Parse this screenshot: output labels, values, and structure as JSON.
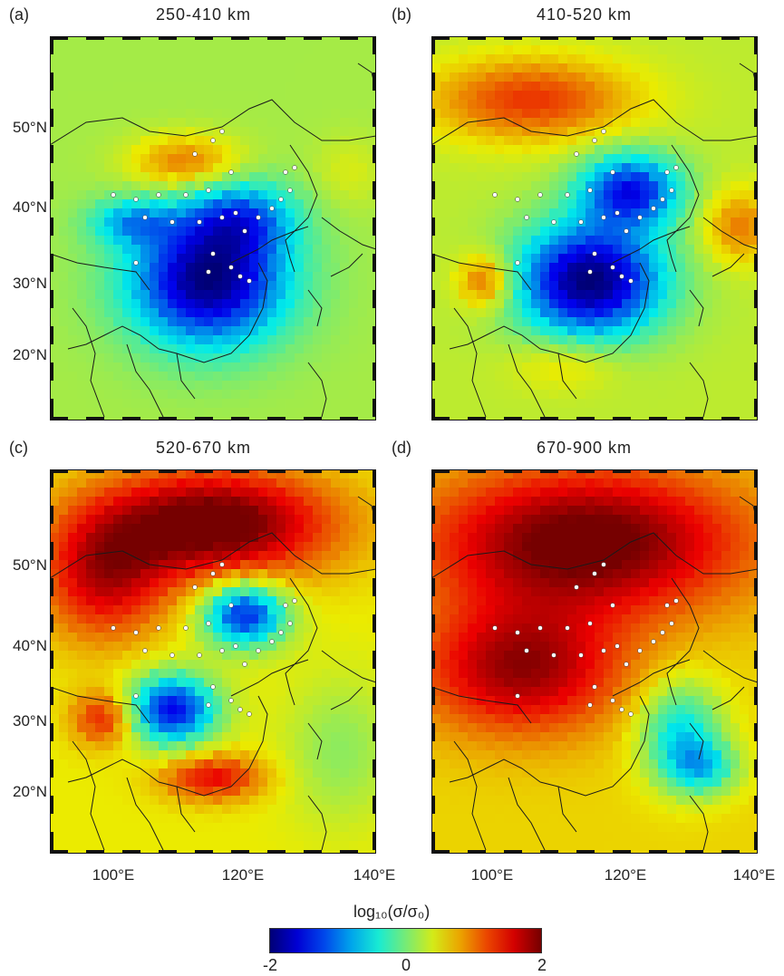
{
  "panels": [
    {
      "label": "(a)",
      "title": "250-410 km"
    },
    {
      "label": "(b)",
      "title": "410-520 km"
    },
    {
      "label": "(c)",
      "title": "520-670 km"
    },
    {
      "label": "(d)",
      "title": "670-900 km"
    }
  ],
  "lat_labels": [
    "50°N",
    "40°N",
    "30°N",
    "20°N"
  ],
  "lon_labels": [
    "100°E",
    "120°E",
    "140°E"
  ],
  "colorbar": {
    "title": "log₁₀(σ/σ₀)",
    "ticks": [
      "-2",
      "0",
      "2"
    ],
    "range": [
      -2,
      2
    ],
    "colormap": "jet"
  }
}
